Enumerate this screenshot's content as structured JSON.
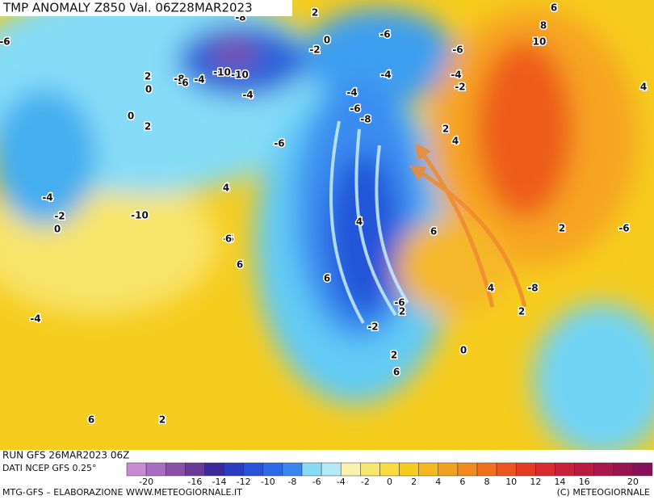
{
  "header": {
    "title": "TMP ANOMALY Z850 Val. 06Z28MAR2023"
  },
  "footer": {
    "run": "RUN GFS 26MAR2023 06Z",
    "source": "DATI NCEP GFS 0.25°",
    "credit": "MTG-GFS – ELABORAZIONE WWW.METEOGIORNALE.IT",
    "copyright": "(C) METEOGIORNALE"
  },
  "colorbar": {
    "colors": [
      "#c88ad0",
      "#a86cc0",
      "#8a50a8",
      "#6a3a98",
      "#3a2a9a",
      "#2a3cc0",
      "#2852d8",
      "#2c6ae6",
      "#3a86f0",
      "#4aa0f4",
      "#5ab8f6",
      "#6ccaf6",
      "#8adaf6",
      "#b4eaf8",
      "#f8f4b0",
      "#f8e870",
      "#f8dc40",
      "#f6cc1e",
      "#f6b820",
      "#f4a020"
    ],
    "colors_warm": [
      "#f28a20",
      "#f07020",
      "#ec5420",
      "#e43c22",
      "#d82c30",
      "#c82238",
      "#b81c40",
      "#a8184a",
      "#981450",
      "#88105a"
    ],
    "labels": [
      -20,
      -16,
      -14,
      -12,
      -10,
      -8,
      -6,
      -4,
      -2,
      0,
      2,
      4,
      6,
      8,
      10,
      12,
      14,
      16,
      20
    ]
  },
  "map_labels": [
    "-6",
    "-8",
    "-2",
    "0",
    "-6",
    "-6",
    "-4",
    "-4",
    "-2",
    "2",
    "6",
    "8",
    "10",
    "2",
    "0",
    "-8",
    "-6",
    "-4",
    "-10",
    "-10",
    "-4",
    "-4",
    "-6",
    "-8",
    "0",
    "2",
    "-6",
    "2",
    "4",
    "4",
    "4",
    "-6",
    "-4",
    "-2",
    "0",
    "-10",
    "4",
    "6",
    "6",
    "6",
    "2",
    "-6",
    "6",
    "4",
    "-8",
    "-6",
    "2",
    "2",
    "-4",
    "-2",
    "2",
    "0",
    "6",
    "6",
    "2"
  ]
}
